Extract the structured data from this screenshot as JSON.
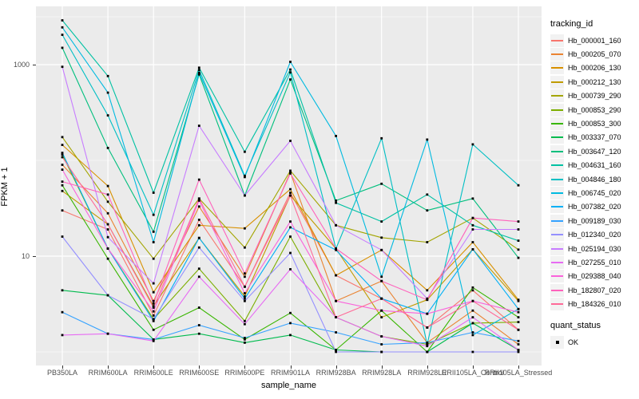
{
  "chart_data": {
    "type": "line",
    "xlabel": "sample_name",
    "ylabel": "FPKM + 1",
    "y_scale": "log10",
    "panel_bg": "#EBEBEB",
    "grid_color": "#FFFFFF",
    "point_color": "#000000",
    "tick_label_color": "#4d4d4d",
    "y_ticks": [
      {
        "label": "1000",
        "value": 1000
      },
      {
        "label": "10",
        "value": 10
      }
    ],
    "y_minor_values": [
      3162,
      100,
      1
    ],
    "categories": [
      "PB350LA",
      "RRIM600LA",
      "RRIM600LE",
      "RRIM600SE",
      "RRIM600PE",
      "RRIM901LA",
      "RRIM928BA",
      "RRIM928LA",
      "RRIM928LE",
      "RRII105LA_Control",
      "RRII105LA_Stressed"
    ],
    "legend": {
      "title": "tracking_id",
      "quant_title": "quant_status",
      "quant_label": "OK"
    },
    "series": [
      {
        "name": "Hb_000001_160",
        "color": "#F8766D",
        "values": [
          30,
          19,
          2.4,
          24,
          4.8,
          46,
          6.3,
          3.6,
          1.8,
          4.4,
          1.7
        ]
      },
      {
        "name": "Hb_000205_070",
        "color": "#EA8331",
        "values": [
          90,
          28,
          3.4,
          33,
          6.1,
          75,
          3.4,
          5.5,
          1.25,
          2.7,
          1.2
        ]
      },
      {
        "name": "Hb_000206_130",
        "color": "#D89000",
        "values": [
          145,
          54,
          4.2,
          21,
          19.5,
          50,
          6.3,
          11.6,
          4.4,
          14,
          3.5
        ]
      },
      {
        "name": "Hb_000212_130",
        "color": "#C09B00",
        "values": [
          48,
          21.5,
          3.0,
          15.5,
          3.8,
          43,
          12,
          2.3,
          3.5,
          11.8,
          3.4
        ]
      },
      {
        "name": "Hb_000739_290",
        "color": "#A3A500",
        "values": [
          175,
          37,
          9.4,
          40,
          12.3,
          78,
          21,
          15.6,
          14,
          25,
          11.7
        ]
      },
      {
        "name": "Hb_000853_290",
        "color": "#7CAE00",
        "values": [
          115,
          12,
          2.2,
          7.4,
          2.1,
          16,
          2.3,
          1.45,
          1.2,
          2.0,
          2.05
        ]
      },
      {
        "name": "Hb_000853_300",
        "color": "#39B600",
        "values": [
          55,
          9.4,
          1.7,
          2.9,
          1.35,
          2.55,
          1.05,
          2.7,
          1.0,
          4.7,
          2.3
        ]
      },
      {
        "name": "Hb_003337_070",
        "color": "#00BB4E",
        "values": [
          4.4,
          3.9,
          1.35,
          1.55,
          1.25,
          1.5,
          1.05,
          1.0,
          1.0,
          2.0,
          1.05
        ]
      },
      {
        "name": "Hb_003647_120",
        "color": "#00BF7D",
        "values": [
          1500,
          135,
          18,
          790,
          43,
          700,
          38,
          57,
          30,
          40,
          9.6
        ]
      },
      {
        "name": "Hb_004631_160",
        "color": "#00C1A3",
        "values": [
          2900,
          760,
          46,
          930,
          123,
          890,
          36,
          23,
          44,
          21,
          14.5
        ]
      },
      {
        "name": "Hb_004846_180",
        "color": "#00BFC4",
        "values": [
          2050,
          295,
          27,
          880,
          69,
          830,
          12,
          170,
          1.2,
          147,
          55
        ]
      },
      {
        "name": "Hb_006745_020",
        "color": "#00BAE0",
        "values": [
          2450,
          510,
          14,
          820,
          67,
          1070,
          180,
          6.1,
          165,
          1.5,
          2.8
        ]
      },
      {
        "name": "Hb_007382_020",
        "color": "#00B0F6",
        "values": [
          120,
          12,
          2.1,
          15.5,
          3.6,
          20,
          11.6,
          3.6,
          2.5,
          11.8,
          2.8
        ]
      },
      {
        "name": "Hb_009189_030",
        "color": "#35A2FF",
        "values": [
          2.6,
          1.55,
          1.35,
          1.9,
          1.4,
          2.0,
          1.6,
          1.2,
          1.25,
          1.6,
          1.3
        ]
      },
      {
        "name": "Hb_012340_020",
        "color": "#9590FF",
        "values": [
          16,
          3.9,
          2.2,
          12.3,
          3.4,
          10.8,
          1.0,
          1.0,
          1.0,
          1.0,
          1.0
        ]
      },
      {
        "name": "Hb_025194_030",
        "color": "#C77CFF",
        "values": [
          950,
          15.8,
          5.2,
          230,
          43,
          160,
          21,
          11.6,
          3.6,
          19,
          19
        ]
      },
      {
        "name": "Hb_027255_010",
        "color": "#E76BF3",
        "values": [
          1.5,
          1.55,
          1.3,
          6.1,
          1.95,
          7.3,
          2.3,
          1.45,
          1.15,
          2.3,
          1.05
        ]
      },
      {
        "name": "Hb_029388_040",
        "color": "#FA62DB",
        "values": [
          80,
          12,
          2.65,
          38,
          4.1,
          23,
          3.4,
          2.7,
          2.5,
          3.4,
          2.6
        ]
      },
      {
        "name": "Hb_182807_020",
        "color": "#FF62BC",
        "values": [
          60,
          44,
          3.2,
          63,
          6.6,
          73,
          12,
          5.5,
          3.5,
          25,
          23
        ]
      },
      {
        "name": "Hb_184326_010",
        "color": "#FF6A98",
        "values": [
          108,
          21.5,
          2.9,
          40,
          4.8,
          43,
          2.3,
          3.6,
          1.8,
          3.4,
          1.7
        ]
      }
    ]
  }
}
